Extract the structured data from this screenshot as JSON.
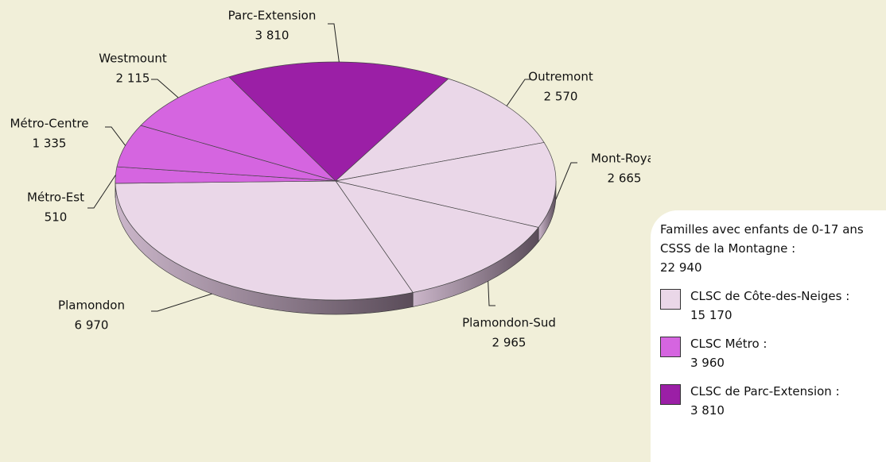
{
  "chart_data": {
    "type": "pie",
    "categories": [
      "Parc-Extension",
      "Outremont",
      "Mont-Royal",
      "Plamondon-Sud",
      "Plamondon",
      "Métro-Est",
      "Métro-Centre",
      "Westmount"
    ],
    "values": [
      3810,
      2570,
      2665,
      2965,
      6970,
      510,
      1335,
      2115
    ],
    "value_labels": [
      "3 810",
      "2 570",
      "2 665",
      "2 965",
      "6 970",
      "510",
      "1 335",
      "2 115"
    ],
    "colors": [
      "#9b1fa6",
      "#ead7e8",
      "#ead7e8",
      "#ead7e8",
      "#ead7e8",
      "#d565e0",
      "#d565e0",
      "#d565e0"
    ],
    "legend": {
      "title": "Familles avec enfants de 0-17 ans CSSS de la Montagne :",
      "total_label": "22 940",
      "items": [
        {
          "name": "CLSC de Côte-des-Neiges :",
          "label": "15 170",
          "color": "#ead7e8"
        },
        {
          "name": "CLSC Métro :",
          "label": "3 960",
          "color": "#d565e0"
        },
        {
          "name": "CLSC de Parc-Extension :",
          "label": "3 810",
          "color": "#9b1fa6"
        }
      ]
    }
  }
}
